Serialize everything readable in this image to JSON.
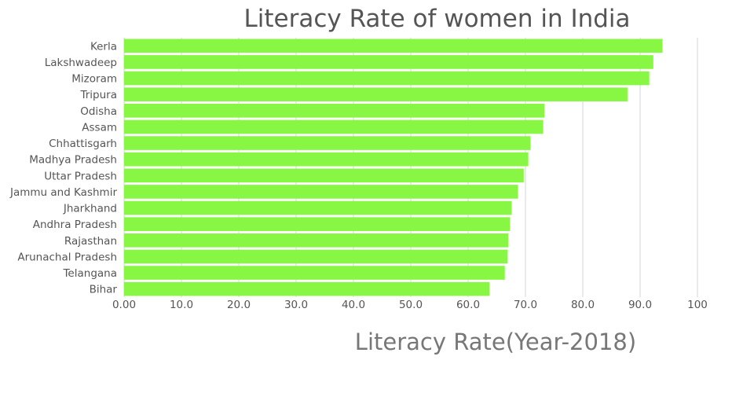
{
  "chart_data": {
    "type": "bar",
    "orientation": "horizontal",
    "title": "Literacy Rate of women in India",
    "xlabel": "Literacy Rate(Year-2018)",
    "ylabel": "",
    "xlim": [
      0,
      100
    ],
    "xticks": [
      "0.00",
      "10.0",
      "20.0",
      "30.0",
      "40.0",
      "50.0",
      "60.0",
      "70.0",
      "80.0",
      "90.0",
      "100"
    ],
    "grid": true,
    "bar_color": "#88f744",
    "categories": [
      "Kerla",
      "Lakshwadeep",
      "Mizoram",
      "Tripura",
      "Odisha",
      "Assam",
      "Chhattisgarh",
      "Madhya Pradesh",
      "Uttar Pradesh",
      "Jammu and Kashmir",
      "Jharkhand",
      "Andhra Pradesh",
      "Rajasthan",
      "Arunachal Pradesh",
      "Telangana",
      "Bihar"
    ],
    "values": [
      93.9,
      92.3,
      91.6,
      87.8,
      73.3,
      73.1,
      70.9,
      70.5,
      69.7,
      68.7,
      67.6,
      67.3,
      67.0,
      66.9,
      66.4,
      63.7
    ]
  }
}
